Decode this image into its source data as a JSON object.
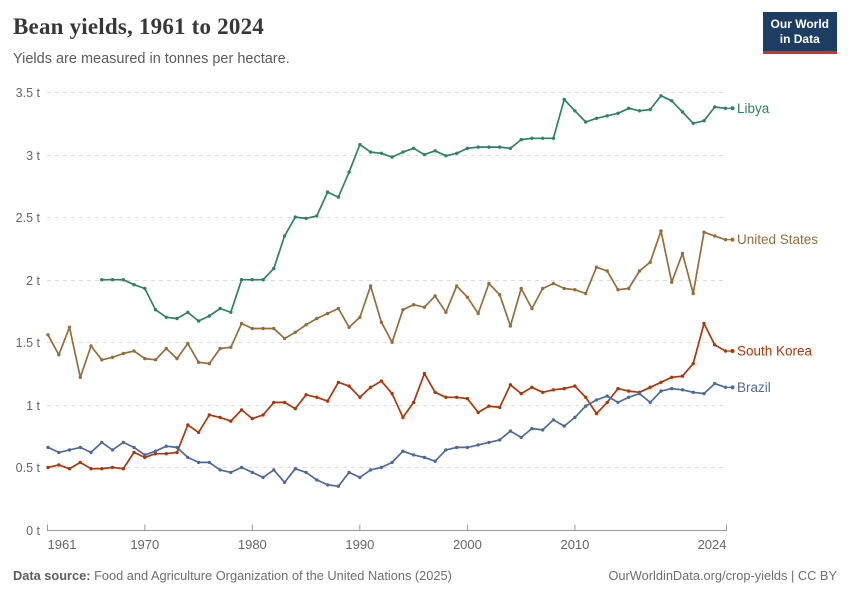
{
  "header": {
    "title": "Bean yields, 1961 to 2024",
    "subtitle": "Yields are measured in tonnes per hectare."
  },
  "logo": {
    "line1": "Our World",
    "line2": "in Data"
  },
  "footer": {
    "source_label": "Data source:",
    "source_text": " Food and Agriculture Organization of the United Nations (2025)",
    "right_text": "OurWorldinData.org/crop-yields | CC BY"
  },
  "chart_data": {
    "type": "line",
    "title": "Bean yields, 1961 to 2024",
    "ylabel": "tonnes per hectare",
    "xlabel": "",
    "grid": true,
    "legend_position": "end-of-line-labels",
    "colors": {
      "grid": "#dddddd",
      "axis": "#999999",
      "tick_text": "#666666"
    },
    "x": {
      "min": 1961,
      "max": 2024,
      "ticks": [
        1961,
        1970,
        1980,
        1990,
        2000,
        2010,
        2024
      ]
    },
    "y": {
      "min": 0,
      "max": 3.5,
      "ticks": [
        0,
        0.5,
        1,
        1.5,
        2,
        2.5,
        3,
        3.5
      ],
      "suffix": " t"
    },
    "series": [
      {
        "name": "Libya",
        "color": "#2C8465",
        "start_year": 1966,
        "values": [
          2.0,
          2.0,
          2.0,
          1.96,
          1.93,
          1.76,
          1.7,
          1.69,
          1.74,
          1.67,
          1.71,
          1.77,
          1.74,
          2.0,
          2.0,
          2.0,
          2.09,
          2.35,
          2.5,
          2.49,
          2.51,
          2.7,
          2.66,
          2.86,
          3.08,
          3.02,
          3.01,
          2.98,
          3.02,
          3.05,
          3.0,
          3.03,
          2.99,
          3.01,
          3.05,
          3.06,
          3.06,
          3.06,
          3.05,
          3.12,
          3.13,
          3.13,
          3.13,
          3.44,
          3.35,
          3.26,
          3.29,
          3.31,
          3.33,
          3.37,
          3.35,
          3.36,
          3.47,
          3.43,
          3.34,
          3.25,
          3.27,
          3.38,
          3.37
        ]
      },
      {
        "name": "United States",
        "color": "#996D39",
        "start_year": 1961,
        "values": [
          1.56,
          1.4,
          1.62,
          1.22,
          1.47,
          1.36,
          1.38,
          1.41,
          1.43,
          1.37,
          1.36,
          1.45,
          1.37,
          1.49,
          1.34,
          1.33,
          1.45,
          1.46,
          1.65,
          1.61,
          1.61,
          1.61,
          1.53,
          1.58,
          1.64,
          1.69,
          1.73,
          1.77,
          1.62,
          1.7,
          1.95,
          1.66,
          1.5,
          1.76,
          1.8,
          1.78,
          1.87,
          1.74,
          1.95,
          1.86,
          1.73,
          1.97,
          1.88,
          1.63,
          1.93,
          1.77,
          1.93,
          1.97,
          1.93,
          1.92,
          1.89,
          2.1,
          2.07,
          1.92,
          1.93,
          2.07,
          2.14,
          2.39,
          1.98,
          2.21,
          1.89,
          2.38,
          2.35,
          2.32
        ]
      },
      {
        "name": "South Korea",
        "color": "#B13507",
        "start_year": 1961,
        "values": [
          0.5,
          0.52,
          0.49,
          0.54,
          0.49,
          0.49,
          0.5,
          0.49,
          0.62,
          0.58,
          0.61,
          0.61,
          0.62,
          0.84,
          0.78,
          0.92,
          0.9,
          0.87,
          0.96,
          0.89,
          0.92,
          1.02,
          1.02,
          0.97,
          1.08,
          1.06,
          1.03,
          1.18,
          1.15,
          1.06,
          1.14,
          1.19,
          1.09,
          0.9,
          1.02,
          1.25,
          1.1,
          1.06,
          1.06,
          1.05,
          0.94,
          0.99,
          0.98,
          1.16,
          1.09,
          1.14,
          1.1,
          1.12,
          1.13,
          1.15,
          1.06,
          0.93,
          1.02,
          1.13,
          1.11,
          1.1,
          1.14,
          1.18,
          1.22,
          1.23,
          1.33,
          1.65,
          1.48,
          1.43
        ]
      },
      {
        "name": "Brazil",
        "color": "#4C6A9C",
        "start_year": 1961,
        "values": [
          0.66,
          0.62,
          0.64,
          0.66,
          0.62,
          0.7,
          0.64,
          0.7,
          0.66,
          0.6,
          0.63,
          0.67,
          0.66,
          0.58,
          0.54,
          0.54,
          0.48,
          0.46,
          0.5,
          0.46,
          0.42,
          0.48,
          0.38,
          0.49,
          0.46,
          0.4,
          0.36,
          0.35,
          0.46,
          0.42,
          0.48,
          0.5,
          0.54,
          0.63,
          0.6,
          0.58,
          0.55,
          0.64,
          0.66,
          0.66,
          0.68,
          0.7,
          0.72,
          0.79,
          0.74,
          0.81,
          0.8,
          0.88,
          0.83,
          0.9,
          0.99,
          1.04,
          1.07,
          1.02,
          1.06,
          1.09,
          1.02,
          1.11,
          1.13,
          1.12,
          1.1,
          1.09,
          1.17,
          1.14
        ]
      }
    ]
  }
}
